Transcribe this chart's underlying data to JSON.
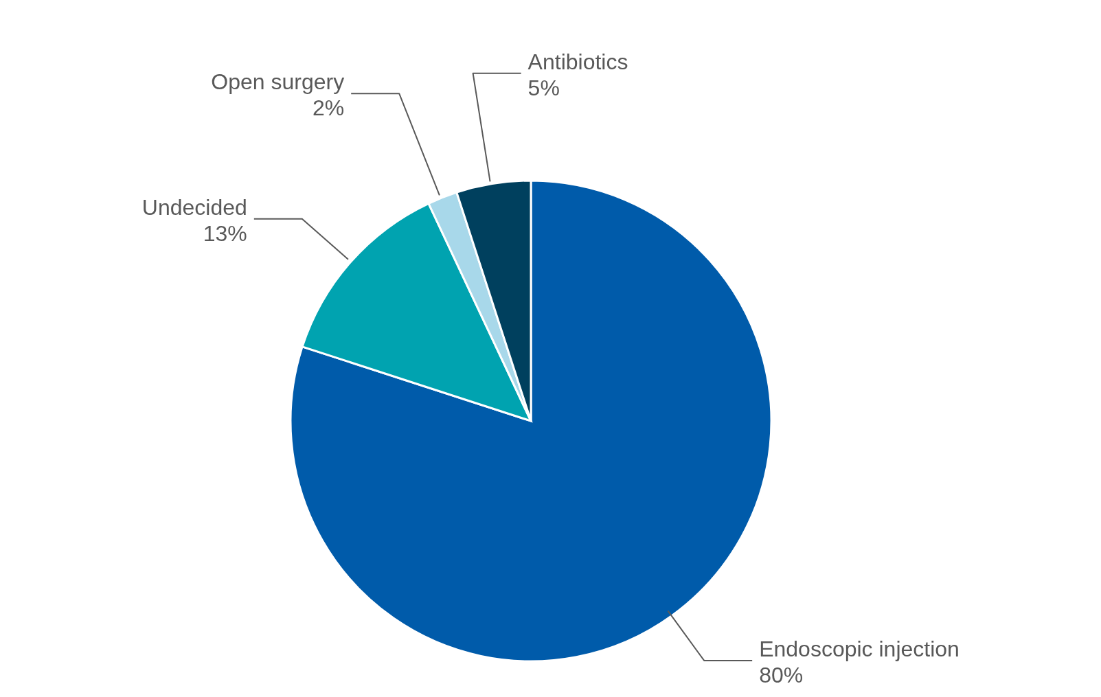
{
  "chart_data": {
    "type": "pie",
    "categories": [
      "Endoscopic injection",
      "Undecided",
      "Open surgery",
      "Antibiotics"
    ],
    "values": [
      80,
      13,
      2,
      5
    ],
    "colors": [
      "#005baa",
      "#00a3b0",
      "#a8d8ea",
      "#00405e"
    ],
    "value_labels": [
      "80%",
      "13%",
      "2%",
      "5%"
    ],
    "legend": false
  }
}
